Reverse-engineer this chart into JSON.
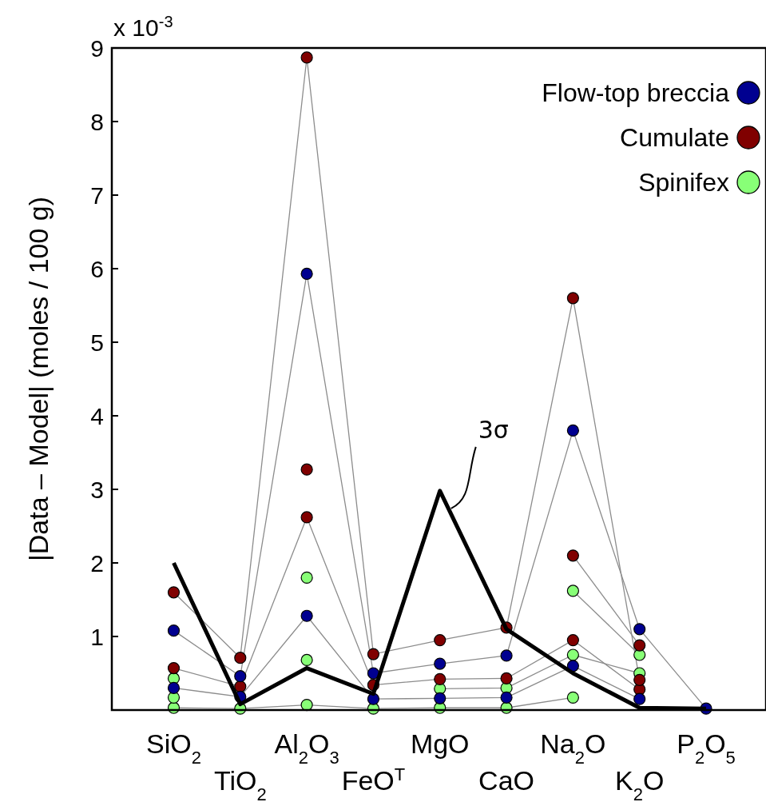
{
  "chart_data": {
    "type": "line",
    "ylabel": "|Data – Model|  (moles / 100 g)",
    "annotations": [
      "x 10$^{-3}$"
    ],
    "categories": [
      "SiO$_{2}$",
      "TiO$_{2}$",
      "Al$_{2}$O$_{3}$",
      "FeO$^{T}$",
      "MgO",
      "CaO",
      "Na$_{2}$O",
      "K$_{2}$O",
      "P$_{2}$O$_{5}$"
    ],
    "ylim": [
      0,
      9
    ],
    "yticks": [
      1,
      2,
      3,
      4,
      5,
      6,
      7,
      8,
      9
    ],
    "grid": false,
    "legend": "top right",
    "marker": "circle",
    "line_style": "solid",
    "series": [
      {
        "color": "#88ff77",
        "values": [
          0.03,
          0.02,
          0.07,
          0.02,
          0.03,
          0.03,
          0.17,
          null,
          null
        ]
      },
      {
        "color": "#88ff77",
        "values": [
          0.17,
          null,
          0.68,
          null,
          0.29,
          0.3,
          0.75,
          0.5,
          null
        ]
      },
      {
        "name": "Spinifex",
        "color": "#88ff77",
        "values": [
          0.43,
          null,
          1.8,
          null,
          null,
          null,
          1.62,
          0.75,
          null
        ]
      },
      {
        "color": "#800000",
        "values": [
          0.57,
          0.32,
          2.62,
          0.34,
          0.42,
          0.43,
          0.95,
          0.28,
          null
        ]
      },
      {
        "color": "#800000",
        "values": [
          null,
          null,
          3.27,
          null,
          null,
          null,
          2.1,
          0.88,
          null
        ]
      },
      {
        "name": "Cumulate",
        "color": "#800000",
        "values": [
          1.6,
          0.71,
          8.87,
          0.76,
          0.95,
          1.12,
          5.6,
          0.41,
          null
        ]
      },
      {
        "color": "#000090",
        "values": [
          0.3,
          0.18,
          1.28,
          0.15,
          0.16,
          0.17,
          0.6,
          0.15,
          null
        ]
      },
      {
        "name": "Flow-top breccia",
        "color": "#000090",
        "values": [
          1.08,
          0.46,
          5.93,
          0.5,
          0.63,
          0.74,
          3.8,
          1.1,
          0.02
        ]
      },
      {
        "name": "3σ",
        "color": "#000000",
        "marker": "none",
        "values": [
          2.0,
          0.08,
          0.57,
          0.22,
          2.98,
          1.1,
          0.5,
          0.03,
          0.02
        ]
      }
    ]
  }
}
